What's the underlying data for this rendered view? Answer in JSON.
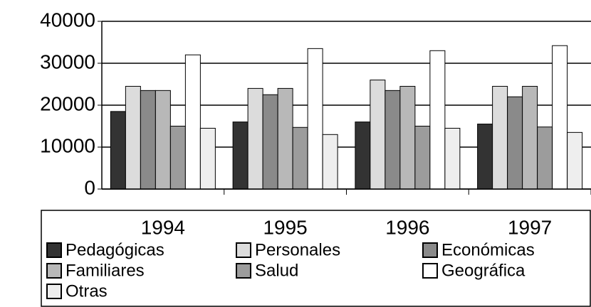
{
  "chart_data": {
    "type": "bar",
    "categories": [
      "1994",
      "1995",
      "1996",
      "1997"
    ],
    "series": [
      {
        "name": "Pedagógicas",
        "color": "#333333",
        "values": [
          18500,
          16000,
          16000,
          15500
        ]
      },
      {
        "name": "Personales",
        "color": "#dcdcdc",
        "values": [
          24500,
          24000,
          26000,
          24500
        ]
      },
      {
        "name": "Económicas",
        "color": "#8a8a8a",
        "values": [
          23500,
          22500,
          23500,
          22000
        ]
      },
      {
        "name": "Familiares",
        "color": "#b8b8b8",
        "values": [
          23500,
          24000,
          24500,
          24500
        ]
      },
      {
        "name": "Salud",
        "color": "#9c9c9c",
        "values": [
          15000,
          14700,
          15000,
          14800
        ]
      },
      {
        "name": "Geográfica",
        "color": "#ffffff",
        "values": [
          32000,
          33500,
          33000,
          34200
        ]
      },
      {
        "name": "Otras",
        "color": "#eeeeee",
        "values": [
          14500,
          13000,
          14500,
          13500
        ]
      }
    ],
    "ylim": [
      0,
      40000
    ],
    "yticks": [
      0,
      10000,
      20000,
      30000,
      40000
    ],
    "grid": true,
    "legend": "bottom"
  }
}
